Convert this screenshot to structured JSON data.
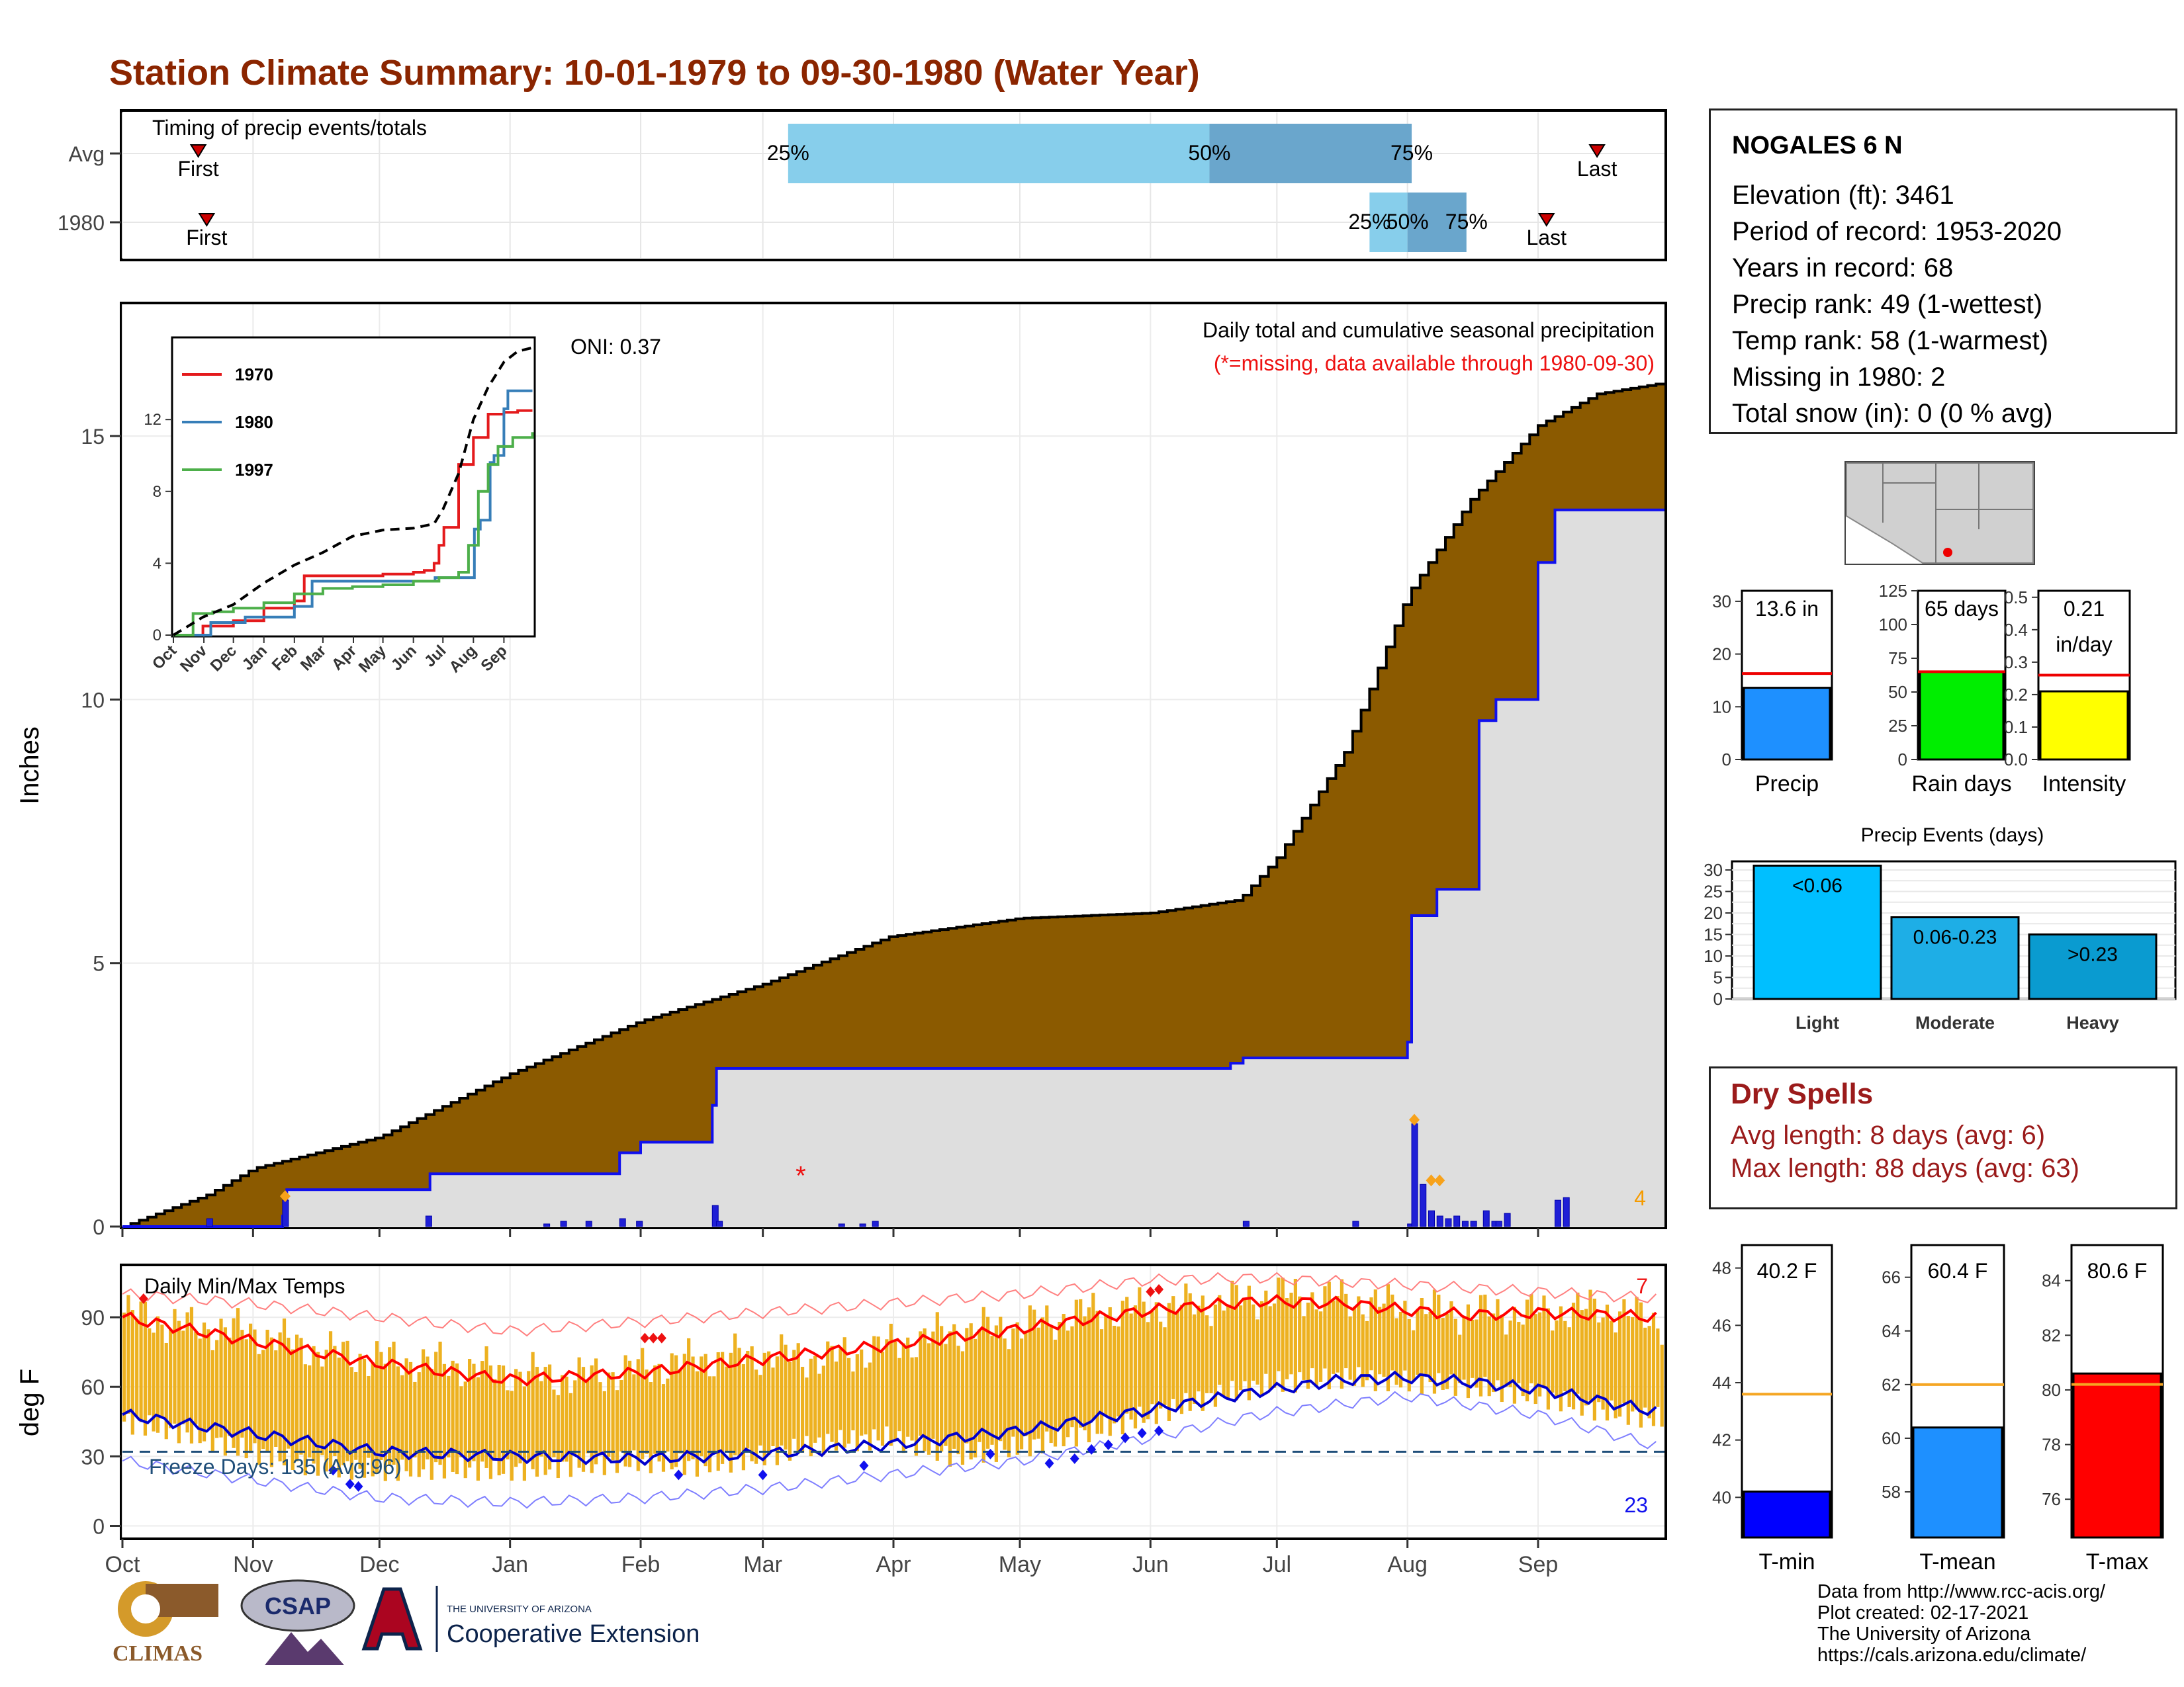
{
  "title": "Station Climate Summary: 10-01-1979 to 09-30-1980 (Water Year)",
  "colors": {
    "title": "#8b2500",
    "brown": "#8b5a00",
    "gray_fill": "#dedede",
    "blue_line": "#1010ee",
    "orange_bar": "#edb120",
    "red": "#ee1111",
    "light_blue": "#87ceeb",
    "steel_blue": "#6aa6cc",
    "dry_red": "#9b1b1b"
  },
  "timing": {
    "title": "Timing of precip events/totals",
    "rows": [
      {
        "label": "Avg",
        "first": "First",
        "last": "Last",
        "p25": "25%",
        "p50": "50%",
        "p75": "75%",
        "first_day": 18,
        "last_day": 350,
        "p25_day": 158,
        "p50_day": 258,
        "p75_day": 306
      },
      {
        "label": "1980",
        "first": "First",
        "last": "Last",
        "p25": "25%",
        "p50": "50%",
        "p75": "75%",
        "first_day": 20,
        "last_day": 338,
        "p25_day": 296,
        "p50_day": 305,
        "p75_day": 319
      }
    ]
  },
  "precip_panel": {
    "ylabel": "Inches",
    "title": "Daily total and cumulative seasonal precipitation",
    "subtitle": "(*=missing, data available through 1980-09-30)",
    "oni": "ONI: 0.37",
    "count_label": "4",
    "yticks": [
      "0",
      "5",
      "10",
      "15"
    ],
    "inset_legend": [
      "1970",
      "1980",
      "1997"
    ],
    "inset_yticks": [
      "0",
      "4",
      "8",
      "12"
    ],
    "inset_xticks": [
      "Oct",
      "Nov",
      "Dec",
      "Jan",
      "Feb",
      "Mar",
      "Apr",
      "May",
      "Jun",
      "Jul",
      "Aug",
      "Sep"
    ]
  },
  "temp_panel": {
    "ylabel": "deg F",
    "title": "Daily Min/Max Temps",
    "freeze": "Freeze Days: 135 (Avg:96)",
    "count_hot": "7",
    "count_cold": "23",
    "yticks": [
      "0",
      "30",
      "60",
      "90"
    ]
  },
  "months": [
    "Oct",
    "Nov",
    "Dec",
    "Jan",
    "Feb",
    "Mar",
    "Apr",
    "May",
    "Jun",
    "Jul",
    "Aug",
    "Sep"
  ],
  "station": {
    "name": "NOGALES 6 N",
    "lines": [
      "Elevation (ft): 3461",
      "Period of record: 1953-2020",
      "Years in record: 68",
      "Precip rank: 49 (1-wettest)",
      "Temp rank: 58 (1-warmest)",
      "Missing in 1980: 2",
      "Total snow (in): 0 (0 % avg)"
    ]
  },
  "summary_bars": [
    {
      "label": "Precip",
      "value_label": "13.6 in",
      "value": 13.6,
      "avg": 16.3,
      "ymax": 32,
      "ticks": [
        "0",
        "10",
        "20",
        "30"
      ],
      "color": "#1e90ff"
    },
    {
      "label": "Rain days",
      "value_label": "65 days",
      "value": 65,
      "avg": 65,
      "ymax": 125,
      "ticks": [
        "0",
        "25",
        "50",
        "75",
        "100",
        "125"
      ],
      "color": "#00ee00"
    },
    {
      "label": "Intensity",
      "value_label": "0.21",
      "value_label2": "in/day",
      "value": 0.21,
      "avg": 0.26,
      "ymax": 0.52,
      "ticks": [
        "0.0",
        "0.1",
        "0.2",
        "0.3",
        "0.4",
        "0.5"
      ],
      "color": "#ffff00"
    }
  ],
  "events": {
    "title": "Precip Events (days)",
    "ticks": [
      "0",
      "5",
      "10",
      "15",
      "20",
      "25",
      "30"
    ],
    "bars": [
      {
        "label": "Light",
        "value_label": "<0.06",
        "value": 31,
        "color": "#00bfff"
      },
      {
        "label": "Moderate",
        "value_label": "0.06-0.23",
        "value": 19,
        "color": "#1eaee6"
      },
      {
        "label": "Heavy",
        "value_label": ">0.23",
        "value": 15,
        "color": "#0a9bd0"
      }
    ]
  },
  "dry_spells": {
    "title": "Dry Spells",
    "avg_line": "Avg length: 8 days (avg: 6)",
    "max_line": "Max length: 88 days (avg: 63)"
  },
  "temp_bars": [
    {
      "label": "T-min",
      "value_label": "40.2 F",
      "value": 40.2,
      "avg": 43.6,
      "ymin": 38.6,
      "ymax": 48.8,
      "ticks": [
        "40",
        "42",
        "44",
        "46",
        "48"
      ],
      "color": "#0000ff"
    },
    {
      "label": "T-mean",
      "value_label": "60.4 F",
      "value": 60.4,
      "avg": 62.0,
      "ymin": 56.3,
      "ymax": 67.2,
      "ticks": [
        "58",
        "60",
        "62",
        "64",
        "66"
      ],
      "color": "#1e90ff"
    },
    {
      "label": "T-max",
      "value_label": "80.6 F",
      "value": 80.6,
      "avg": 80.2,
      "ymin": 74.6,
      "ymax": 85.3,
      "ticks": [
        "76",
        "78",
        "80",
        "82",
        "84"
      ],
      "color": "#ff0000"
    }
  ],
  "footer": {
    "lines": [
      "Data from http://www.rcc-acis.org/",
      "Plot created: 02-17-2021",
      "The University of Arizona",
      "https://cals.arizona.edu/climate/"
    ]
  },
  "logos": {
    "climas": "CLIMAS",
    "csap": "CSAP",
    "ua_top": "THE UNIVERSITY OF ARIZONA",
    "ua_bottom": "Cooperative Extension"
  },
  "chart_data": [
    {
      "type": "area",
      "title": "Daily total and cumulative seasonal precipitation",
      "ylabel": "Inches",
      "ylim": [
        0,
        17.5
      ],
      "x_unit": "day of water year (0 = Oct 1, 1979)",
      "cumulative_avg": {
        "x": [
          0,
          20,
          31,
          61,
          92,
          123,
          152,
          182,
          213,
          244,
          265,
          274,
          290,
          305,
          320,
          336,
          350,
          365
        ],
        "y": [
          0,
          0.6,
          1.1,
          1.7,
          2.9,
          3.9,
          4.6,
          5.5,
          5.85,
          5.95,
          6.2,
          7.0,
          9.0,
          12.0,
          13.8,
          15.2,
          15.8,
          16.0
        ]
      },
      "cumulative_1980": {
        "x": [
          0,
          20,
          38,
          39,
          72,
          73,
          108,
          118,
          123,
          140,
          141,
          210,
          244,
          263,
          266,
          292,
          305,
          306,
          312,
          322,
          326,
          336,
          340,
          365
        ],
        "y": [
          0,
          0,
          0.2,
          0.7,
          0.7,
          1.0,
          1.0,
          1.4,
          1.6,
          2.3,
          3.0,
          3.0,
          3.0,
          3.1,
          3.2,
          3.2,
          3.5,
          5.9,
          6.4,
          9.6,
          10.0,
          12.6,
          13.6,
          13.6
        ]
      },
      "daily_1980": {
        "x": [
          20,
          38,
          72,
          100,
          104,
          110,
          118,
          122,
          140,
          141,
          170,
          175,
          178,
          266,
          292,
          305,
          306,
          308,
          310,
          312,
          314,
          316,
          318,
          320,
          323,
          325,
          326,
          328,
          340,
          342
        ],
        "y": [
          0.15,
          0.5,
          0.2,
          0.05,
          0.1,
          0.1,
          0.15,
          0.1,
          0.4,
          0.1,
          0.05,
          0.05,
          0.1,
          0.1,
          0.1,
          0.05,
          1.95,
          0.8,
          0.3,
          0.2,
          0.15,
          0.2,
          0.1,
          0.1,
          0.3,
          0.1,
          0.1,
          0.25,
          0.5,
          0.55
        ]
      },
      "missing_markers": [
        {
          "x": 161,
          "y": 1.0
        }
      ],
      "inset": {
        "type": "line",
        "ylim": [
          0,
          16
        ],
        "series": [
          {
            "name": "1970",
            "color": "#e41a1c",
            "x": [
              0,
              30,
              61,
              92,
              123,
              133,
              150,
              182,
              213,
              244,
              255,
              265,
              270,
              275,
              290,
              305,
              320,
              336,
              350,
              365
            ],
            "y": [
              0,
              0.5,
              0.8,
              1.5,
              1.9,
              3.3,
              3.3,
              3.3,
              3.4,
              3.5,
              3.6,
              4.0,
              5.0,
              6.0,
              9.5,
              11.0,
              12.3,
              12.4,
              12.5,
              12.5
            ]
          },
          {
            "name": "1980",
            "color": "#377eb8",
            "x": [
              0,
              20,
              38,
              73,
              108,
              123,
              141,
              210,
              244,
              266,
              292,
              306,
              312,
              322,
              326,
              336,
              340,
              365
            ],
            "y": [
              0,
              0,
              0.7,
              1.0,
              1.0,
              1.6,
              3.0,
              3.0,
              3.0,
              3.2,
              3.2,
              5.9,
              6.4,
              9.6,
              10.0,
              12.6,
              13.6,
              13.6
            ]
          },
          {
            "name": "1997",
            "color": "#4daf4a",
            "x": [
              0,
              20,
              40,
              61,
              92,
              123,
              152,
              182,
              213,
              244,
              270,
              290,
              300,
              310,
              320,
              330,
              345,
              365
            ],
            "y": [
              0,
              1.2,
              1.3,
              1.5,
              1.8,
              2.3,
              2.6,
              2.7,
              2.8,
              3.0,
              3.2,
              3.5,
              5.0,
              8.0,
              9.5,
              10.5,
              11.0,
              11.3
            ]
          },
          {
            "name": "Avg",
            "color": "#000000",
            "dashed": true,
            "x": [
              0,
              30,
              61,
              92,
              123,
              152,
              182,
              213,
              244,
              265,
              274,
              290,
              305,
              320,
              336,
              350,
              365
            ],
            "y": [
              0,
              1.0,
              1.7,
              2.9,
              3.9,
              4.6,
              5.5,
              5.85,
              5.95,
              6.2,
              7.0,
              9.0,
              12.0,
              13.8,
              15.2,
              15.8,
              16.0
            ]
          }
        ]
      }
    },
    {
      "type": "bar",
      "title": "Daily Min/Max Temps",
      "ylabel": "deg F",
      "ylim": [
        -5,
        112
      ],
      "freeze_line": 32,
      "avg_max": {
        "x": [
          0,
          30,
          61,
          92,
          123,
          152,
          182,
          213,
          244,
          270,
          290,
          305,
          320,
          336,
          365
        ],
        "y": [
          90,
          80,
          70,
          63,
          66,
          72,
          78,
          85,
          93,
          97,
          96,
          93,
          91,
          92,
          90
        ]
      },
      "avg_min": {
        "x": [
          0,
          30,
          61,
          92,
          123,
          152,
          182,
          213,
          244,
          270,
          290,
          305,
          320,
          336,
          365
        ],
        "y": [
          48,
          40,
          32,
          30,
          29,
          31,
          35,
          41,
          50,
          58,
          63,
          64,
          62,
          59,
          49
        ]
      },
      "record_max": {
        "x": [
          0,
          30,
          61,
          92,
          123,
          152,
          182,
          213,
          244,
          270,
          305,
          336,
          365
        ],
        "y": [
          100,
          96,
          90,
          84,
          88,
          92,
          96,
          100,
          106,
          107,
          104,
          101,
          98
        ]
      },
      "record_min": {
        "x": [
          0,
          30,
          61,
          92,
          123,
          152,
          182,
          213,
          244,
          270,
          305,
          336,
          365
        ],
        "y": [
          28,
          20,
          12,
          10,
          12,
          16,
          22,
          28,
          38,
          48,
          56,
          48,
          34
        ]
      },
      "daily_max": {
        "x": [
          0,
          15,
          30,
          45,
          61,
          76,
          92,
          107,
          123,
          137,
          152,
          167,
          182,
          197,
          213,
          228,
          244,
          259,
          274,
          289,
          305,
          320,
          336,
          350,
          365
        ],
        "y": [
          92,
          86,
          84,
          76,
          72,
          70,
          66,
          64,
          68,
          72,
          74,
          72,
          78,
          84,
          86,
          92,
          94,
          96,
          100,
          98,
          94,
          92,
          92,
          94,
          88
        ]
      },
      "daily_min": {
        "x": [
          0,
          15,
          30,
          45,
          61,
          76,
          92,
          107,
          123,
          137,
          152,
          167,
          182,
          197,
          213,
          228,
          244,
          259,
          274,
          289,
          305,
          320,
          336,
          350,
          365
        ],
        "y": [
          45,
          40,
          32,
          26,
          24,
          25,
          24,
          26,
          28,
          26,
          30,
          36,
          38,
          30,
          34,
          40,
          48,
          56,
          62,
          64,
          62,
          60,
          56,
          50,
          46
        ]
      }
    }
  ]
}
